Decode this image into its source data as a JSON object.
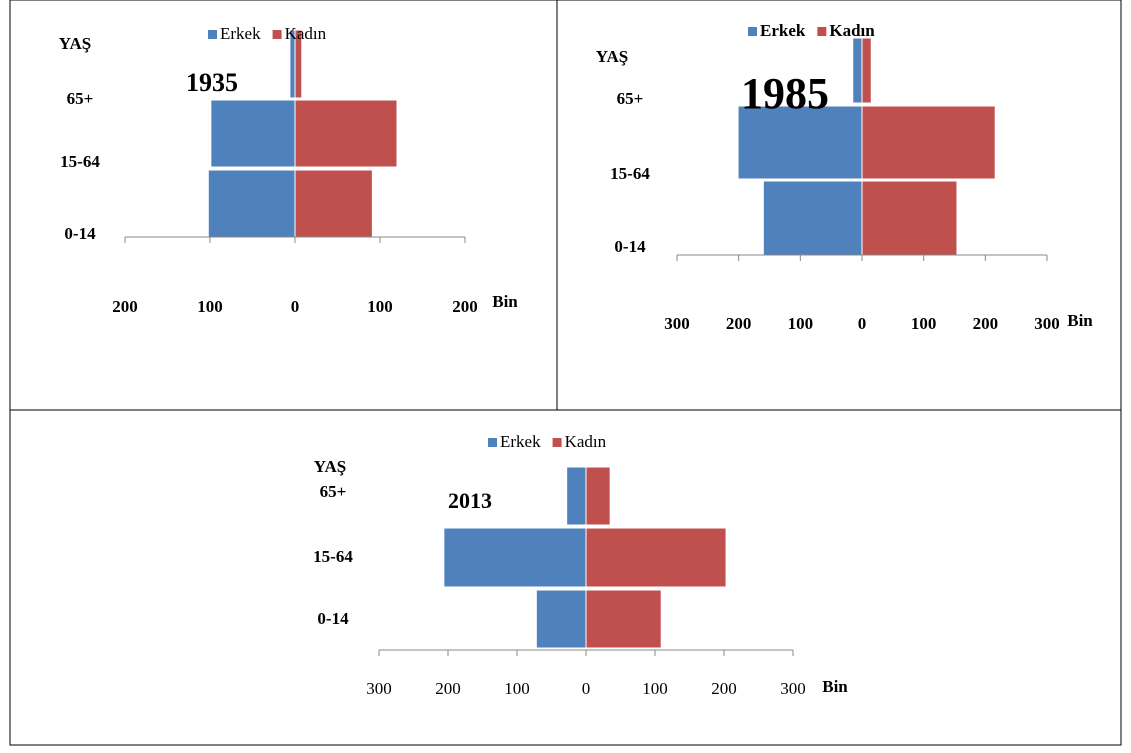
{
  "chart_data": [
    {
      "type": "bar",
      "orientation": "horizontal",
      "stacked_diverging": true,
      "title": "1935",
      "y_label": "YAŞ",
      "x_label": "Bin",
      "categories": [
        "0-14",
        "15-64",
        "65+"
      ],
      "series": [
        {
          "name": "Erkek",
          "color": "#4f81bd",
          "values": [
            -102,
            -99,
            -6
          ]
        },
        {
          "name": "Kadın",
          "color": "#c0504d",
          "values": [
            91,
            120,
            8
          ]
        }
      ],
      "xlim": [
        -200,
        200
      ],
      "xticks": [
        {
          "value": -200,
          "label": "200"
        },
        {
          "value": -100,
          "label": "100"
        },
        0,
        100,
        200
      ]
    },
    {
      "type": "bar",
      "orientation": "horizontal",
      "stacked_diverging": true,
      "title": "1985",
      "y_label": "YAŞ",
      "x_label": "Bin",
      "categories": [
        "0-14",
        "15-64",
        "65+"
      ],
      "series": [
        {
          "name": "Erkek",
          "color": "#4f81bd",
          "values": [
            -160,
            -201,
            -15
          ]
        },
        {
          "name": "Kadın",
          "color": "#c0504d",
          "values": [
            154,
            216,
            15
          ]
        }
      ],
      "xlim": [
        -300,
        300
      ],
      "xticks": [
        {
          "value": -300,
          "label": "300"
        },
        {
          "value": -200,
          "label": "200"
        },
        {
          "value": -100,
          "label": "100"
        },
        0,
        100,
        200,
        300
      ]
    },
    {
      "type": "bar",
      "orientation": "horizontal",
      "stacked_diverging": true,
      "title": "2013",
      "y_label": "YAŞ",
      "x_label": "Bin",
      "categories": [
        "0-14",
        "15-64",
        "65+"
      ],
      "series": [
        {
          "name": "Erkek",
          "color": "#4f81bd",
          "values": [
            -72,
            -206,
            -28
          ]
        },
        {
          "name": "Kadın",
          "color": "#c0504d",
          "values": [
            109,
            203,
            35
          ]
        }
      ],
      "xlim": [
        -300,
        300
      ],
      "xticks": [
        {
          "value": -300,
          "label": "300"
        },
        {
          "value": -200,
          "label": "200"
        },
        {
          "value": -100,
          "label": "100"
        },
        0,
        100,
        200,
        300
      ]
    }
  ]
}
